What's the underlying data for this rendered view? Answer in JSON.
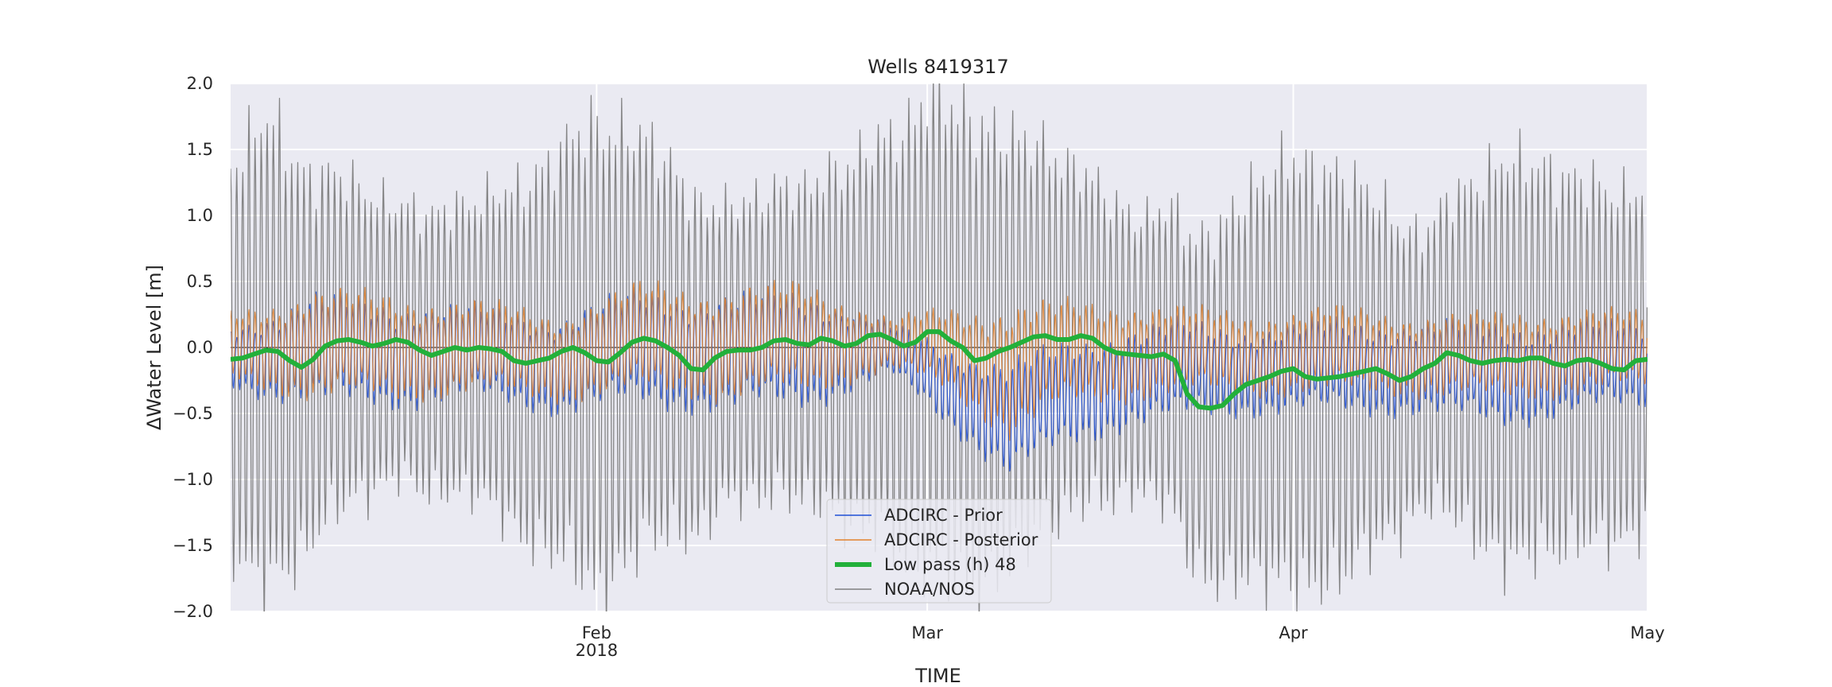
{
  "chart_data": {
    "type": "line",
    "title": "Wells  8419317",
    "xlabel": "TIME",
    "ylabel": "ΔWater Level [m]",
    "xlim": [
      "2018-01-01",
      "2018-05-01"
    ],
    "ylim": [
      -2.0,
      2.0
    ],
    "yticks": [
      -2.0,
      -1.5,
      -1.0,
      -0.5,
      0.0,
      0.5,
      1.0,
      1.5,
      2.0
    ],
    "ytick_labels": [
      "−2.0",
      "−1.5",
      "−1.0",
      "−0.5",
      "0.0",
      "0.5",
      "1.0",
      "1.5",
      "2.0"
    ],
    "xticks": [
      {
        "date": "2018-02-01",
        "label": "Feb",
        "sublabel": "2018"
      },
      {
        "date": "2018-03-01",
        "label": "Mar",
        "sublabel": ""
      },
      {
        "date": "2018-04-01",
        "label": "Apr",
        "sublabel": ""
      },
      {
        "date": "2018-05-01",
        "label": "May",
        "sublabel": ""
      }
    ],
    "grid": true,
    "legend_position": "lower center",
    "background": "#eaeaf2",
    "reference_line": 0.0,
    "series": [
      {
        "name": "ADCIRC - Prior",
        "color": "#1f4fd6",
        "style": "thin line (semi-diurnal oscillation)",
        "envelope": {
          "dates": [
            "2018-01-01",
            "2018-01-08",
            "2018-01-15",
            "2018-01-22",
            "2018-01-29",
            "2018-02-05",
            "2018-02-12",
            "2018-02-19",
            "2018-02-26",
            "2018-03-03",
            "2018-03-08",
            "2018-03-13",
            "2018-03-18",
            "2018-03-23",
            "2018-03-28",
            "2018-04-04",
            "2018-04-11",
            "2018-04-18",
            "2018-04-25",
            "2018-05-01"
          ],
          "upper": [
            0.2,
            0.45,
            0.4,
            0.35,
            0.3,
            0.5,
            0.45,
            0.5,
            0.2,
            0.05,
            -0.05,
            0.1,
            0.2,
            0.25,
            0.2,
            0.25,
            0.25,
            0.25,
            0.25,
            0.25
          ],
          "lower": [
            -0.35,
            -0.5,
            -0.5,
            -0.45,
            -0.55,
            -0.5,
            -0.55,
            -0.5,
            -0.25,
            -0.65,
            -1.05,
            -0.8,
            -0.65,
            -0.6,
            -0.55,
            -0.55,
            -0.55,
            -0.65,
            -0.55,
            -0.5
          ]
        }
      },
      {
        "name": "ADCIRC - Posterior",
        "color": "#e1812c",
        "style": "thin line (semi-diurnal oscillation)",
        "envelope": {
          "dates": [
            "2018-01-01",
            "2018-01-08",
            "2018-01-15",
            "2018-01-22",
            "2018-01-29",
            "2018-02-05",
            "2018-02-12",
            "2018-02-19",
            "2018-02-26",
            "2018-03-03",
            "2018-03-08",
            "2018-03-13",
            "2018-03-18",
            "2018-03-23",
            "2018-03-28",
            "2018-04-04",
            "2018-04-11",
            "2018-04-18",
            "2018-04-25",
            "2018-05-01"
          ],
          "upper": [
            0.3,
            0.5,
            0.45,
            0.4,
            0.3,
            0.55,
            0.5,
            0.55,
            0.25,
            0.35,
            0.4,
            0.4,
            0.4,
            0.35,
            0.3,
            0.35,
            0.3,
            0.3,
            0.35,
            0.3
          ],
          "lower": [
            -0.3,
            -0.45,
            -0.45,
            -0.4,
            -0.45,
            -0.4,
            -0.45,
            -0.4,
            -0.2,
            -0.4,
            -0.75,
            -0.5,
            -0.45,
            -0.4,
            -0.4,
            -0.4,
            -0.4,
            -0.45,
            -0.4,
            -0.35
          ]
        }
      },
      {
        "name": "Low pass (h) 48",
        "color": "#22b03a",
        "style": "thick line",
        "points": [
          [
            "2018-01-01",
            -0.09
          ],
          [
            "2018-01-02",
            -0.08
          ],
          [
            "2018-01-03",
            -0.05
          ],
          [
            "2018-01-04",
            -0.02
          ],
          [
            "2018-01-05",
            -0.03
          ],
          [
            "2018-01-06",
            -0.1
          ],
          [
            "2018-01-07",
            -0.15
          ],
          [
            "2018-01-08",
            -0.09
          ],
          [
            "2018-01-09",
            0.01
          ],
          [
            "2018-01-10",
            0.05
          ],
          [
            "2018-01-11",
            0.06
          ],
          [
            "2018-01-12",
            0.04
          ],
          [
            "2018-01-13",
            0.01
          ],
          [
            "2018-01-14",
            0.03
          ],
          [
            "2018-01-15",
            0.06
          ],
          [
            "2018-01-16",
            0.04
          ],
          [
            "2018-01-17",
            -0.02
          ],
          [
            "2018-01-18",
            -0.06
          ],
          [
            "2018-01-19",
            -0.03
          ],
          [
            "2018-01-20",
            0.0
          ],
          [
            "2018-01-21",
            -0.02
          ],
          [
            "2018-01-22",
            0.0
          ],
          [
            "2018-01-23",
            -0.01
          ],
          [
            "2018-01-24",
            -0.03
          ],
          [
            "2018-01-25",
            -0.1
          ],
          [
            "2018-01-26",
            -0.12
          ],
          [
            "2018-01-27",
            -0.1
          ],
          [
            "2018-01-28",
            -0.08
          ],
          [
            "2018-01-29",
            -0.03
          ],
          [
            "2018-01-30",
            0.0
          ],
          [
            "2018-01-31",
            -0.04
          ],
          [
            "2018-02-01",
            -0.1
          ],
          [
            "2018-02-02",
            -0.11
          ],
          [
            "2018-02-03",
            -0.04
          ],
          [
            "2018-02-04",
            0.04
          ],
          [
            "2018-02-05",
            0.07
          ],
          [
            "2018-02-06",
            0.05
          ],
          [
            "2018-02-07",
            0.0
          ],
          [
            "2018-02-08",
            -0.06
          ],
          [
            "2018-02-09",
            -0.16
          ],
          [
            "2018-02-10",
            -0.17
          ],
          [
            "2018-02-11",
            -0.08
          ],
          [
            "2018-02-12",
            -0.03
          ],
          [
            "2018-02-13",
            -0.02
          ],
          [
            "2018-02-14",
            -0.02
          ],
          [
            "2018-02-15",
            0.0
          ],
          [
            "2018-02-16",
            0.05
          ],
          [
            "2018-02-17",
            0.06
          ],
          [
            "2018-02-18",
            0.03
          ],
          [
            "2018-02-19",
            0.02
          ],
          [
            "2018-02-20",
            0.07
          ],
          [
            "2018-02-21",
            0.05
          ],
          [
            "2018-02-22",
            0.01
          ],
          [
            "2018-02-23",
            0.03
          ],
          [
            "2018-02-24",
            0.09
          ],
          [
            "2018-02-25",
            0.1
          ],
          [
            "2018-02-26",
            0.06
          ],
          [
            "2018-02-27",
            0.01
          ],
          [
            "2018-02-28",
            0.04
          ],
          [
            "2018-03-01",
            0.12
          ],
          [
            "2018-03-02",
            0.12
          ],
          [
            "2018-03-03",
            0.05
          ],
          [
            "2018-03-04",
            0.0
          ],
          [
            "2018-03-05",
            -0.1
          ],
          [
            "2018-03-06",
            -0.08
          ],
          [
            "2018-03-07",
            -0.03
          ],
          [
            "2018-03-08",
            0.0
          ],
          [
            "2018-03-09",
            0.04
          ],
          [
            "2018-03-10",
            0.08
          ],
          [
            "2018-03-11",
            0.09
          ],
          [
            "2018-03-12",
            0.06
          ],
          [
            "2018-03-13",
            0.06
          ],
          [
            "2018-03-14",
            0.09
          ],
          [
            "2018-03-15",
            0.07
          ],
          [
            "2018-03-16",
            0.0
          ],
          [
            "2018-03-17",
            -0.04
          ],
          [
            "2018-03-18",
            -0.05
          ],
          [
            "2018-03-19",
            -0.06
          ],
          [
            "2018-03-20",
            -0.07
          ],
          [
            "2018-03-21",
            -0.05
          ],
          [
            "2018-03-22",
            -0.1
          ],
          [
            "2018-03-23",
            -0.35
          ],
          [
            "2018-03-24",
            -0.45
          ],
          [
            "2018-03-25",
            -0.46
          ],
          [
            "2018-03-26",
            -0.44
          ],
          [
            "2018-03-27",
            -0.35
          ],
          [
            "2018-03-28",
            -0.28
          ],
          [
            "2018-03-29",
            -0.25
          ],
          [
            "2018-03-30",
            -0.22
          ],
          [
            "2018-03-31",
            -0.18
          ],
          [
            "2018-04-01",
            -0.16
          ],
          [
            "2018-04-02",
            -0.22
          ],
          [
            "2018-04-03",
            -0.24
          ],
          [
            "2018-04-04",
            -0.23
          ],
          [
            "2018-04-05",
            -0.22
          ],
          [
            "2018-04-06",
            -0.2
          ],
          [
            "2018-04-07",
            -0.18
          ],
          [
            "2018-04-08",
            -0.16
          ],
          [
            "2018-04-09",
            -0.2
          ],
          [
            "2018-04-10",
            -0.25
          ],
          [
            "2018-04-11",
            -0.22
          ],
          [
            "2018-04-12",
            -0.16
          ],
          [
            "2018-04-13",
            -0.12
          ],
          [
            "2018-04-14",
            -0.04
          ],
          [
            "2018-04-15",
            -0.06
          ],
          [
            "2018-04-16",
            -0.1
          ],
          [
            "2018-04-17",
            -0.12
          ],
          [
            "2018-04-18",
            -0.1
          ],
          [
            "2018-04-19",
            -0.09
          ],
          [
            "2018-04-20",
            -0.1
          ],
          [
            "2018-04-21",
            -0.08
          ],
          [
            "2018-04-22",
            -0.08
          ],
          [
            "2018-04-23",
            -0.12
          ],
          [
            "2018-04-24",
            -0.14
          ],
          [
            "2018-04-25",
            -0.1
          ],
          [
            "2018-04-26",
            -0.09
          ],
          [
            "2018-04-27",
            -0.12
          ],
          [
            "2018-04-28",
            -0.16
          ],
          [
            "2018-04-29",
            -0.17
          ],
          [
            "2018-04-30",
            -0.1
          ],
          [
            "2018-05-01",
            -0.09
          ]
        ]
      },
      {
        "name": "NOAA/NOS",
        "color": "#808080",
        "style": "thin line (semi-diurnal tide)",
        "amplitude_envelope": {
          "dates": [
            "2018-01-01",
            "2018-01-04",
            "2018-01-08",
            "2018-01-15",
            "2018-01-22",
            "2018-01-29",
            "2018-02-01",
            "2018-02-05",
            "2018-02-12",
            "2018-02-19",
            "2018-02-26",
            "2018-03-01",
            "2018-03-05",
            "2018-03-12",
            "2018-03-19",
            "2018-03-26",
            "2018-04-01",
            "2018-04-05",
            "2018-04-12",
            "2018-04-19",
            "2018-04-26",
            "2018-05-01"
          ],
          "amplitude": [
            1.7,
            2.1,
            1.6,
            1.2,
            1.3,
            1.8,
            2.1,
            1.8,
            1.3,
            1.4,
            1.8,
            2.1,
            2.1,
            1.6,
            1.2,
            1.6,
            1.9,
            1.8,
            1.2,
            1.8,
            1.6,
            1.5
          ]
        }
      }
    ]
  }
}
